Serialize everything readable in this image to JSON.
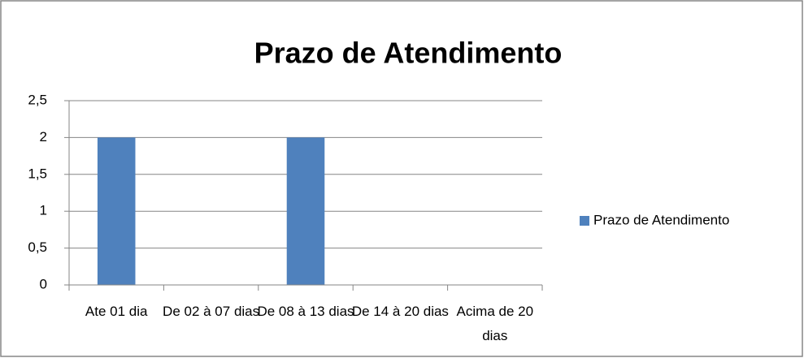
{
  "chart_data": {
    "type": "bar",
    "title": "Prazo de Atendimento",
    "categories": [
      "Ate 01 dia",
      "De 02 à 07 dias",
      "De 08 à 13 dias",
      "De 14 à 20 dias",
      "Acima de 20 dias"
    ],
    "series": [
      {
        "name": "Prazo de Atendimento",
        "color": "#4f81bd",
        "values": [
          2,
          0,
          2,
          0,
          0
        ]
      }
    ],
    "ylim": [
      0,
      2.5
    ],
    "yticks": [
      0,
      {
        "value": 0.5,
        "label": "0,5"
      },
      1,
      {
        "value": 1.5,
        "label": "1,5"
      },
      2,
      {
        "value": 2.5,
        "label": "2,5"
      }
    ],
    "grid": true,
    "legend": "right"
  }
}
